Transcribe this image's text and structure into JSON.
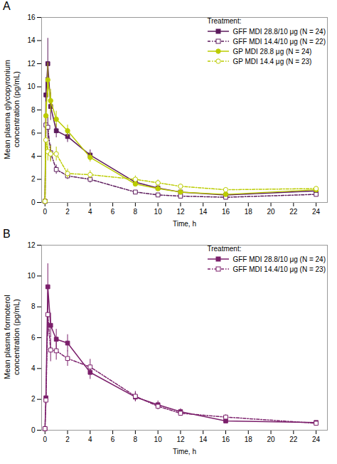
{
  "chart_data": [
    {
      "type": "line",
      "title": "A",
      "xlabel": "Time, h",
      "ylabel": "Mean plasma glycopyronium\nconcentration (pg/mL)",
      "xlim": [
        -0.3,
        25
      ],
      "ylim": [
        0,
        16
      ],
      "xticks": [
        0,
        2,
        4,
        6,
        8,
        10,
        12,
        14,
        16,
        18,
        20,
        22,
        24
      ],
      "yticks": [
        0,
        2,
        4,
        6,
        8,
        10,
        12,
        14,
        16
      ],
      "grid": false,
      "legend": "upper right",
      "legend_title": "Treatment:",
      "x": [
        0,
        0.083,
        0.25,
        0.5,
        1,
        2,
        4,
        8,
        10,
        12,
        16,
        24
      ],
      "series": [
        {
          "name": "GFF MDI 28.8/10 μg (N = 24)",
          "color": "#5C1A5C",
          "line_style": "solid",
          "marker": "square",
          "values": [
            0.1,
            9.3,
            12.0,
            8.3,
            6.2,
            5.7,
            4.1,
            1.75,
            1.25,
            0.9,
            0.65,
            1.0
          ],
          "yerr": [
            0.1,
            1.5,
            2.2,
            1.2,
            0.6,
            0.5,
            0.45,
            0.25,
            0.2,
            0.15,
            0.15,
            0.15
          ]
        },
        {
          "name": "GFF MDI 14.4/10 μg (N = 22)",
          "color": "#5C1A5C",
          "line_style": "dashdot",
          "marker": "open square",
          "values": [
            0.1,
            6.7,
            6.5,
            4.3,
            2.85,
            2.3,
            2.0,
            0.9,
            0.65,
            0.55,
            0.45,
            0.7
          ],
          "yerr": [
            0.1,
            1.0,
            1.0,
            0.7,
            0.4,
            0.3,
            0.3,
            0.15,
            0.1,
            0.1,
            0.1,
            0.1
          ]
        },
        {
          "name": "GP MDI 28.8 μg (N = 24)",
          "color": "#BBCC00",
          "line_style": "solid",
          "marker": "circle",
          "values": [
            0.1,
            7.5,
            10.6,
            8.8,
            7.2,
            6.2,
            3.9,
            1.6,
            1.2,
            0.9,
            0.7,
            1.1
          ],
          "yerr": [
            0.1,
            1.2,
            1.5,
            1.0,
            0.7,
            0.5,
            0.4,
            0.2,
            0.18,
            0.15,
            0.12,
            0.15
          ]
        },
        {
          "name": "GP MDI 14.4 μg (N = 23)",
          "color": "#BBCC00",
          "line_style": "dashdot",
          "marker": "open circle",
          "values": [
            0.1,
            5.4,
            4.4,
            4.2,
            4.2,
            2.5,
            2.4,
            2.0,
            1.7,
            1.4,
            1.1,
            1.2
          ],
          "yerr": [
            0.1,
            0.9,
            0.8,
            0.7,
            0.6,
            0.4,
            0.35,
            0.3,
            0.25,
            0.2,
            0.18,
            0.18
          ]
        }
      ]
    },
    {
      "type": "line",
      "title": "B",
      "xlabel": "Time, h",
      "ylabel": "Mean plasma formoterol\nconcentration (pg/mL)",
      "xlim": [
        -0.3,
        25
      ],
      "ylim": [
        0,
        12
      ],
      "xticks": [
        0,
        2,
        4,
        6,
        8,
        10,
        12,
        14,
        16,
        18,
        20,
        22,
        24
      ],
      "yticks": [
        0,
        2,
        4,
        6,
        8,
        10,
        12
      ],
      "grid": false,
      "legend": "upper right",
      "legend_title": "Treatment:",
      "x": [
        0,
        0.083,
        0.25,
        0.5,
        1,
        2,
        4,
        8,
        10,
        12,
        16,
        24
      ],
      "series": [
        {
          "name": "GFF MDI 28.8/10 μg (N = 24)",
          "color": "#7B1F6B",
          "line_style": "solid",
          "marker": "square",
          "values": [
            0.1,
            2.1,
            9.3,
            6.8,
            5.9,
            5.65,
            3.75,
            2.15,
            1.65,
            1.2,
            0.6,
            0.5
          ],
          "yerr": [
            0.05,
            0.5,
            1.5,
            0.8,
            0.65,
            0.55,
            0.45,
            0.3,
            0.25,
            0.2,
            0.1,
            0.1
          ]
        },
        {
          "name": "GFF MDI 14.4/10 μg (N = 23)",
          "color": "#7B1F6B",
          "line_style": "dashdot",
          "marker": "open square",
          "values": [
            0.1,
            1.95,
            7.5,
            5.2,
            5.15,
            4.65,
            4.1,
            2.2,
            1.55,
            1.1,
            0.85,
            0.45
          ],
          "yerr": [
            0.05,
            0.45,
            1.4,
            0.75,
            0.6,
            0.5,
            0.5,
            0.32,
            0.22,
            0.18,
            0.15,
            0.08
          ]
        }
      ]
    }
  ]
}
